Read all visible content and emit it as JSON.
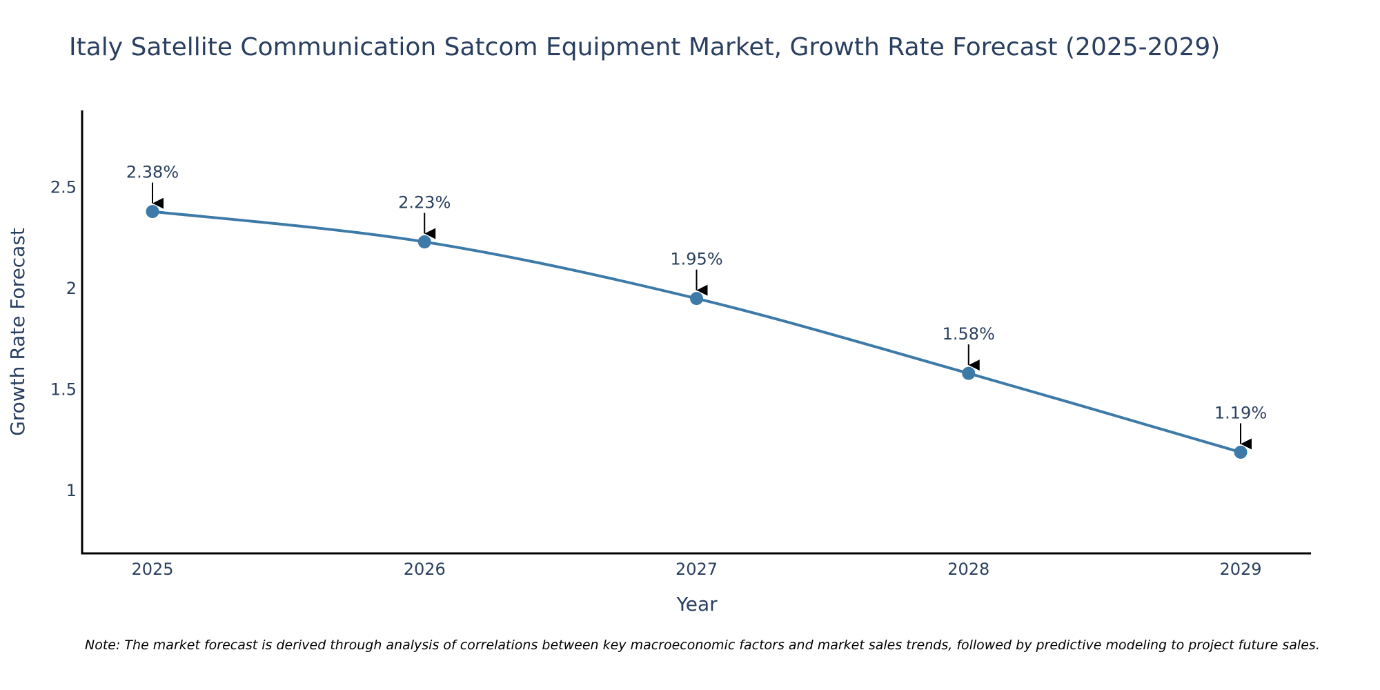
{
  "chart_data": {
    "type": "line",
    "title": "Italy Satellite Communication Satcom Equipment Market, Growth Rate Forecast (2025-2029)",
    "xlabel": "Year",
    "ylabel": "Growth Rate Forecast",
    "categories": [
      "2025",
      "2026",
      "2027",
      "2028",
      "2029"
    ],
    "values": [
      2.38,
      2.23,
      1.95,
      1.58,
      1.19
    ],
    "data_labels": [
      "2.38%",
      "2.23%",
      "1.95%",
      "1.58%",
      "1.19%"
    ],
    "ylim": [
      0.69,
      2.88
    ],
    "yticks": [
      1,
      1.5,
      2,
      2.5
    ],
    "ytick_labels": [
      "1",
      "1.5",
      "2",
      "2.5"
    ],
    "grid": false,
    "line_color": "#3d7aa8",
    "marker_color": "#3d7aa8",
    "note": "Note: The market forecast is derived through analysis of correlations between key macroeconomic factors and market sales trends, followed by predictive modeling to project future sales."
  }
}
